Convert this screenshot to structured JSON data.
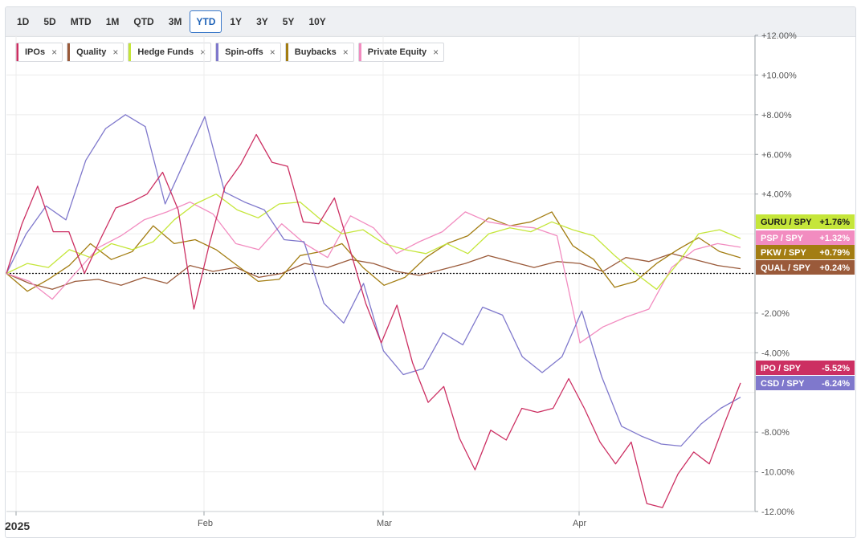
{
  "toolbar": {
    "ranges": [
      "1D",
      "5D",
      "MTD",
      "1M",
      "QTD",
      "3M",
      "YTD",
      "1Y",
      "3Y",
      "5Y",
      "10Y"
    ],
    "active": "YTD"
  },
  "legend": [
    {
      "label": "IPOs",
      "color": "#cc2f62"
    },
    {
      "label": "Quality",
      "color": "#9a5a3a"
    },
    {
      "label": "Hedge Funds",
      "color": "#c5e63a"
    },
    {
      "label": "Spin-offs",
      "color": "#7f78cc"
    },
    {
      "label": "Buybacks",
      "color": "#a37d12"
    },
    {
      "label": "Private Equity",
      "color": "#f28cc0"
    }
  ],
  "chart_data": {
    "type": "line",
    "x_labels": [
      "2025",
      "Feb",
      "Mar",
      "Apr"
    ],
    "ylim": [
      -12,
      12
    ],
    "y_ticks": [
      {
        "v": 12,
        "t": "+12.00%"
      },
      {
        "v": 10,
        "t": "+10.00%"
      },
      {
        "v": 8,
        "t": "+8.00%"
      },
      {
        "v": 6,
        "t": "+6.00%"
      },
      {
        "v": 4,
        "t": "+4.00%"
      },
      {
        "v": -2,
        "t": "-2.00%"
      },
      {
        "v": -4,
        "t": "-4.00%"
      },
      {
        "v": -8,
        "t": "-8.00%"
      },
      {
        "v": -10,
        "t": "-10.00%"
      },
      {
        "v": -12,
        "t": "-12.00%"
      }
    ],
    "series": [
      {
        "name": "IPOs",
        "color": "#cc2f62",
        "end_label": "IPO / SPY",
        "end_value": "-5.52%",
        "values": [
          0,
          2.5,
          4.4,
          2.1,
          2.1,
          0,
          1.7,
          3.3,
          3.6,
          4.0,
          5.1,
          3.2,
          -1.8,
          1.5,
          4.4,
          5.5,
          7.0,
          5.6,
          5.4,
          2.6,
          2.5,
          3.8,
          1.2,
          -1.5,
          -3.5,
          -1.6,
          -4.5,
          -6.5,
          -5.7,
          -8.3,
          -9.9,
          -7.9,
          -8.4,
          -6.8,
          -7.0,
          -6.8,
          -5.3,
          -6.8,
          -8.5,
          -9.6,
          -8.5,
          -11.6,
          -11.8,
          -10.1,
          -9.0,
          -9.6,
          -7.5,
          -5.52
        ]
      },
      {
        "name": "Spin-offs",
        "color": "#7f78cc",
        "end_label": "CSD / SPY",
        "end_value": "-6.24%",
        "values": [
          0,
          2.0,
          3.4,
          2.7,
          5.7,
          7.3,
          8.0,
          7.4,
          3.5,
          5.7,
          7.9,
          4.1,
          3.6,
          3.2,
          1.7,
          1.6,
          -1.5,
          -2.5,
          -0.5,
          -3.9,
          -5.1,
          -4.8,
          -3.0,
          -3.6,
          -1.7,
          -2.1,
          -4.2,
          -5.0,
          -4.2,
          -1.9,
          -5.2,
          -7.7,
          -8.2,
          -8.6,
          -8.7,
          -7.6,
          -6.8,
          -6.24
        ]
      },
      {
        "name": "Hedge Funds",
        "color": "#c5e63a",
        "end_label": "GURU / SPY",
        "end_value": "+1.76%",
        "values": [
          0,
          0.5,
          0.3,
          1.2,
          0.8,
          1.5,
          1.2,
          1.6,
          2.7,
          3.5,
          4.0,
          3.2,
          2.8,
          3.5,
          3.6,
          2.7,
          2.0,
          2.2,
          1.5,
          1.2,
          1.0,
          1.5,
          1.0,
          2.0,
          2.3,
          2.1,
          2.6,
          2.2,
          1.9,
          0.9,
          0,
          -0.8,
          0.5,
          2.0,
          2.2,
          1.76
        ]
      },
      {
        "name": "Private Equity",
        "color": "#f28cc0",
        "end_label": "PSP / SPY",
        "end_value": "+1.32%",
        "values": [
          0,
          -0.4,
          -1.3,
          0,
          1.3,
          1.9,
          2.7,
          3.1,
          3.6,
          3.0,
          1.5,
          1.2,
          2.5,
          1.5,
          0.8,
          2.9,
          2.3,
          1.0,
          1.6,
          2.1,
          3.1,
          2.6,
          2.4,
          2.3,
          1.9,
          -3.5,
          -2.7,
          -2.2,
          -1.8,
          0.3,
          1.2,
          1.5,
          1.32
        ]
      },
      {
        "name": "Buybacks",
        "color": "#a37d12",
        "end_label": "PKW / SPY",
        "end_value": "+0.79%",
        "values": [
          0,
          -0.9,
          -0.3,
          0.4,
          1.5,
          0.7,
          1.1,
          2.4,
          1.5,
          1.7,
          1.2,
          0.4,
          -0.4,
          -0.3,
          0.9,
          1.1,
          1.5,
          0.3,
          -0.6,
          -0.2,
          0.8,
          1.5,
          1.9,
          2.8,
          2.4,
          2.6,
          3.1,
          1.4,
          0.7,
          -0.7,
          -0.4,
          0.5,
          1.2,
          1.8,
          1.1,
          0.79
        ]
      },
      {
        "name": "Quality",
        "color": "#9a5a3a",
        "end_label": "QUAL / SPY",
        "end_value": "+0.24%",
        "values": [
          0,
          -0.5,
          -0.8,
          -0.4,
          -0.3,
          -0.6,
          -0.2,
          -0.5,
          0.4,
          0.1,
          0.3,
          -0.2,
          0,
          0.5,
          0.3,
          0.7,
          0.5,
          0.1,
          -0.1,
          0.2,
          0.5,
          0.9,
          0.6,
          0.3,
          0.6,
          0.5,
          0.1,
          0.8,
          0.6,
          1.0,
          0.7,
          0.4,
          0.24
        ]
      }
    ]
  }
}
